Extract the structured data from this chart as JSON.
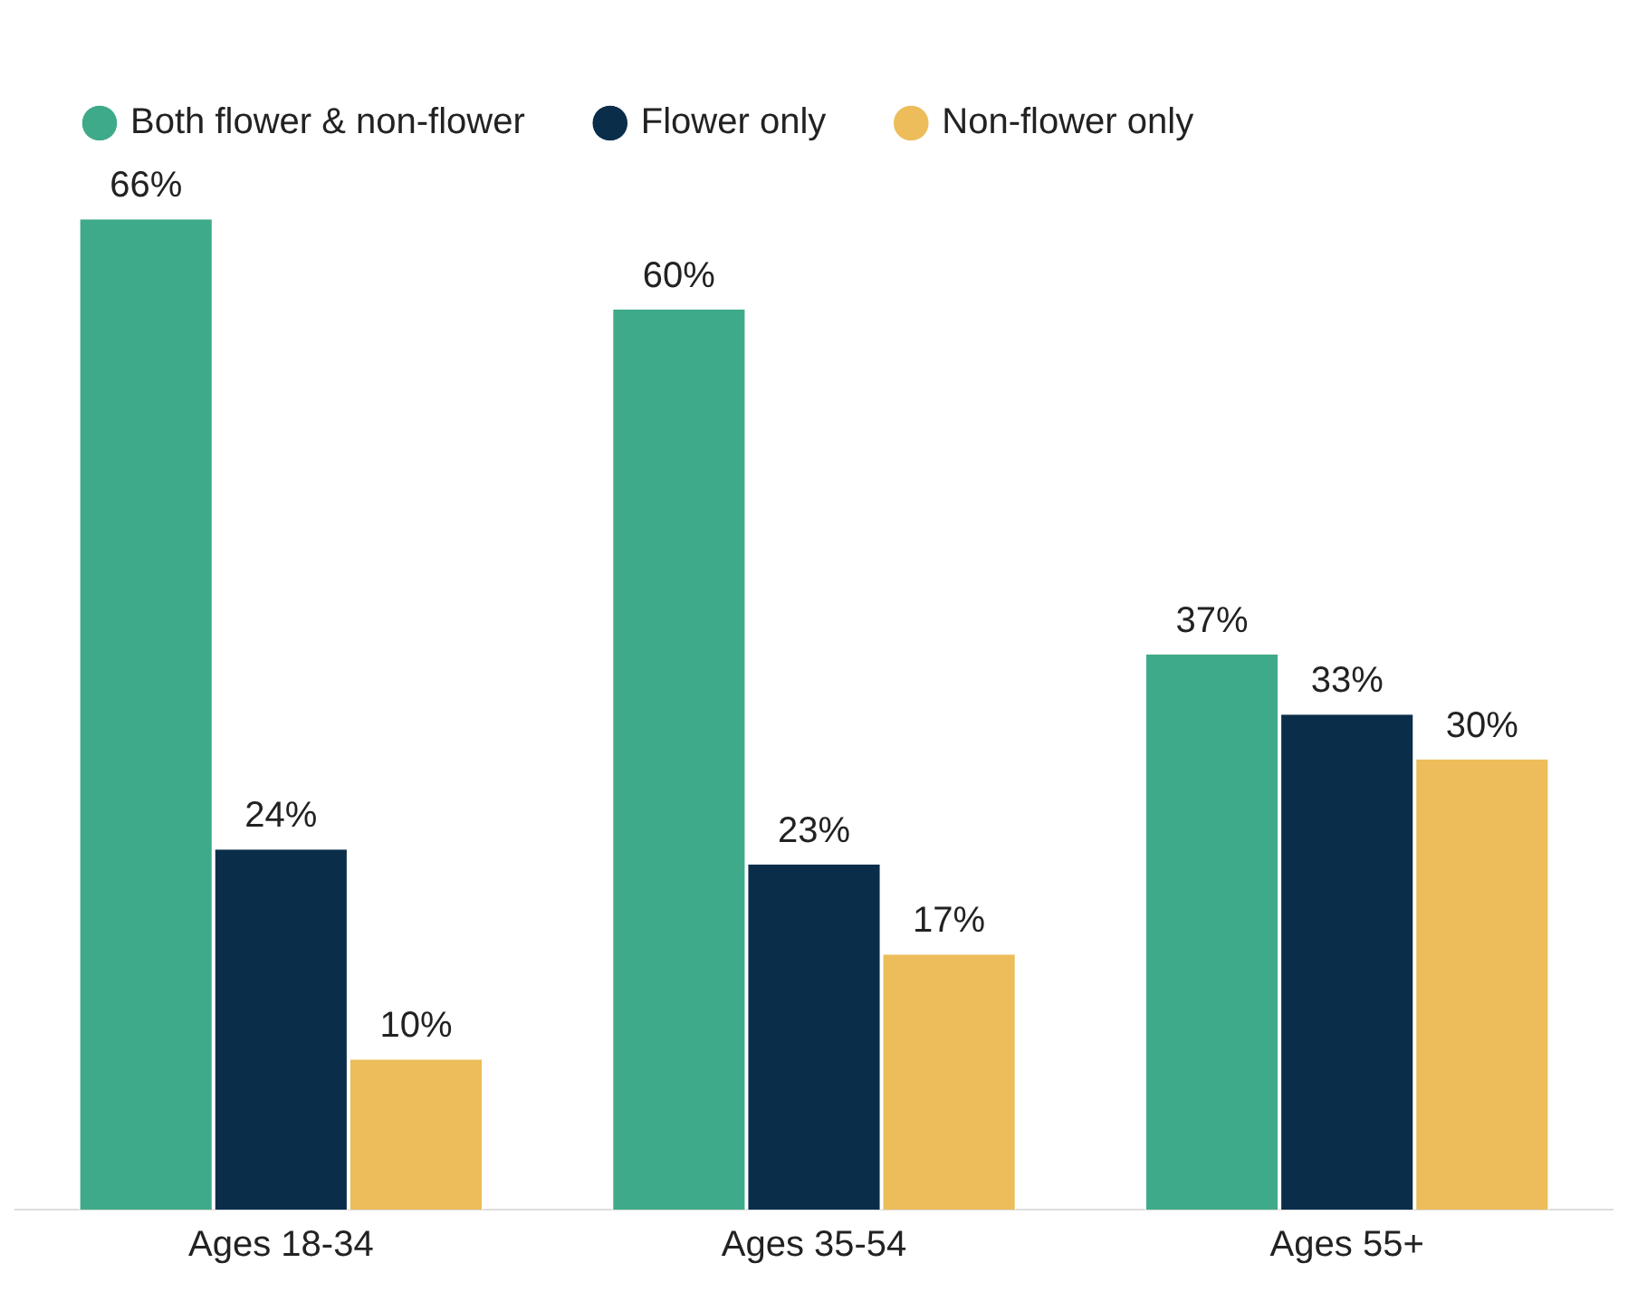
{
  "chart_data": {
    "type": "bar",
    "categories": [
      "Ages 18-34",
      "Ages 35-54",
      "Ages 55+"
    ],
    "series": [
      {
        "name": "Both flower & non-flower",
        "color": "#3faa8a",
        "values": [
          66,
          60,
          37
        ],
        "value_labels": [
          "66%",
          "60%",
          "37%"
        ]
      },
      {
        "name": "Flower only",
        "color": "#0a2d4a",
        "values": [
          24,
          23,
          33
        ],
        "value_labels": [
          "24%",
          "23%",
          "33%"
        ]
      },
      {
        "name": "Non-flower only",
        "color": "#ecbd5a",
        "values": [
          10,
          17,
          30
        ],
        "value_labels": [
          "10%",
          "17%",
          "30%"
        ]
      }
    ],
    "legend": "top",
    "grid": false
  }
}
